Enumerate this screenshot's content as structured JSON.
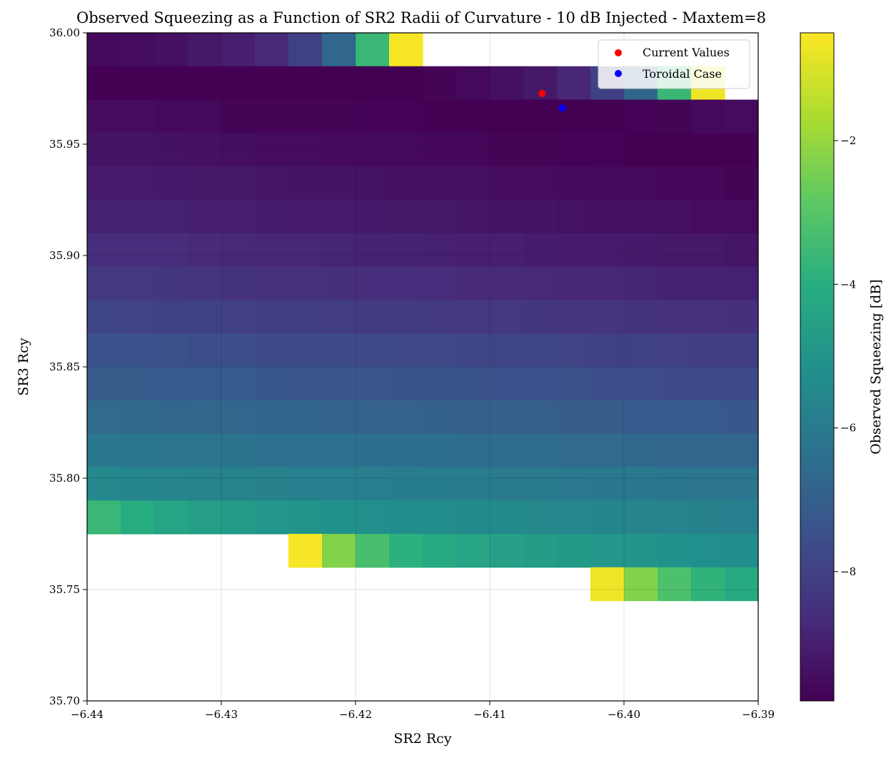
{
  "chart_data": {
    "type": "heatmap",
    "title": "Observed Squeezing as a Function of SR2 Radii of Curvature - 10 dB Injected - Maxtem=8",
    "xlabel": "SR2 Rcy",
    "ylabel": "SR3 Rcy",
    "colorbar_label": "Observed Squeezing [dB]",
    "colormap": "viridis",
    "xlim": [
      -6.44,
      -6.39
    ],
    "ylim": [
      35.7,
      36.0
    ],
    "clim": [
      -9.8,
      -0.5
    ],
    "grid": true,
    "x_ticks": [
      -6.44,
      -6.43,
      -6.42,
      -6.41,
      -6.4,
      -6.39
    ],
    "x_tick_labels": [
      "−6.44",
      "−6.43",
      "−6.42",
      "−6.41",
      "−6.40",
      "−6.39"
    ],
    "y_ticks": [
      35.7,
      35.75,
      35.8,
      35.85,
      35.9,
      35.95,
      36.0
    ],
    "y_tick_labels": [
      "35.70",
      "35.75",
      "35.80",
      "35.85",
      "35.90",
      "35.95",
      "36.00"
    ],
    "colorbar_ticks": [
      -2,
      -4,
      -6,
      -8
    ],
    "colorbar_tick_labels": [
      "−2",
      "−4",
      "−6",
      "−8"
    ],
    "x_edges": [
      -6.44,
      -6.4375,
      -6.435,
      -6.4325,
      -6.43,
      -6.4275,
      -6.425,
      -6.4225,
      -6.42,
      -6.4175,
      -6.415,
      -6.4125,
      -6.41,
      -6.4075,
      -6.405,
      -6.4025,
      -6.4,
      -6.3975,
      -6.395,
      -6.3925,
      -6.39
    ],
    "rows": [
      {
        "y0": 35.985,
        "y1": 36.0,
        "values": [
          -9.6,
          -9.5,
          -9.4,
          -9.2,
          -9.0,
          -8.7,
          -8.0,
          -6.7,
          -3.6,
          -0.6,
          null,
          null,
          null,
          null,
          null,
          null,
          null,
          null,
          null,
          null
        ]
      },
      {
        "y0": 35.97,
        "y1": 35.985,
        "values": [
          -9.8,
          -9.8,
          -9.8,
          -9.8,
          -9.8,
          -9.8,
          -9.8,
          -9.8,
          -9.8,
          -9.8,
          -9.7,
          -9.6,
          -9.4,
          -9.2,
          -8.8,
          -8.0,
          -6.7,
          -3.6,
          -0.7,
          null
        ]
      },
      {
        "y0": 35.955,
        "y1": 35.97,
        "values": [
          -9.5,
          -9.5,
          -9.6,
          -9.6,
          -9.7,
          -9.7,
          -9.7,
          -9.7,
          -9.75,
          -9.75,
          -9.8,
          -9.8,
          -9.8,
          -9.8,
          -9.8,
          -9.8,
          -9.75,
          -9.7,
          -9.6,
          -9.5
        ]
      },
      {
        "y0": 35.94,
        "y1": 35.955,
        "values": [
          -9.3,
          -9.3,
          -9.35,
          -9.4,
          -9.45,
          -9.5,
          -9.5,
          -9.55,
          -9.6,
          -9.6,
          -9.65,
          -9.65,
          -9.7,
          -9.7,
          -9.75,
          -9.75,
          -9.8,
          -9.8,
          -9.8,
          -9.8
        ]
      },
      {
        "y0": 35.925,
        "y1": 35.94,
        "values": [
          -9.1,
          -9.1,
          -9.15,
          -9.2,
          -9.2,
          -9.25,
          -9.3,
          -9.3,
          -9.35,
          -9.4,
          -9.4,
          -9.45,
          -9.5,
          -9.5,
          -9.55,
          -9.6,
          -9.6,
          -9.65,
          -9.65,
          -9.7
        ]
      },
      {
        "y0": 35.91,
        "y1": 35.925,
        "values": [
          -8.9,
          -8.9,
          -8.95,
          -9.0,
          -9.0,
          -9.05,
          -9.1,
          -9.1,
          -9.15,
          -9.2,
          -9.2,
          -9.25,
          -9.3,
          -9.3,
          -9.35,
          -9.4,
          -9.4,
          -9.45,
          -9.5,
          -9.5
        ]
      },
      {
        "y0": 35.895,
        "y1": 35.91,
        "values": [
          -8.6,
          -8.6,
          -8.65,
          -8.7,
          -8.75,
          -8.8,
          -8.8,
          -8.85,
          -8.9,
          -8.9,
          -8.95,
          -9.0,
          -9.0,
          -9.05,
          -9.1,
          -9.1,
          -9.15,
          -9.2,
          -9.2,
          -9.25
        ]
      },
      {
        "y0": 35.88,
        "y1": 35.895,
        "values": [
          -8.3,
          -8.3,
          -8.35,
          -8.4,
          -8.45,
          -8.5,
          -8.5,
          -8.55,
          -8.6,
          -8.6,
          -8.65,
          -8.7,
          -8.7,
          -8.75,
          -8.8,
          -8.8,
          -8.85,
          -8.9,
          -8.9,
          -8.95
        ]
      },
      {
        "y0": 35.865,
        "y1": 35.88,
        "values": [
          -7.9,
          -7.95,
          -8.0,
          -8.0,
          -8.05,
          -8.1,
          -8.1,
          -8.15,
          -8.2,
          -8.2,
          -8.25,
          -8.3,
          -8.3,
          -8.35,
          -8.4,
          -8.4,
          -8.45,
          -8.5,
          -8.5,
          -8.55
        ]
      },
      {
        "y0": 35.85,
        "y1": 35.865,
        "values": [
          -7.5,
          -7.5,
          -7.55,
          -7.6,
          -7.6,
          -7.65,
          -7.7,
          -7.7,
          -7.75,
          -7.8,
          -7.8,
          -7.85,
          -7.9,
          -7.9,
          -7.95,
          -8.0,
          -8.0,
          -8.05,
          -8.1,
          -8.1
        ]
      },
      {
        "y0": 35.835,
        "y1": 35.85,
        "values": [
          -7.1,
          -7.1,
          -7.15,
          -7.2,
          -7.2,
          -7.25,
          -7.3,
          -7.3,
          -7.35,
          -7.4,
          -7.4,
          -7.45,
          -7.5,
          -7.5,
          -7.55,
          -7.6,
          -7.6,
          -7.65,
          -7.7,
          -7.7
        ]
      },
      {
        "y0": 35.82,
        "y1": 35.835,
        "values": [
          -6.6,
          -6.65,
          -6.7,
          -6.7,
          -6.75,
          -6.8,
          -6.8,
          -6.85,
          -6.9,
          -6.9,
          -6.95,
          -7.0,
          -7.0,
          -7.05,
          -7.1,
          -7.1,
          -7.15,
          -7.2,
          -7.2,
          -7.25
        ]
      },
      {
        "y0": 35.805,
        "y1": 35.82,
        "values": [
          -6.1,
          -6.15,
          -6.2,
          -6.2,
          -6.25,
          -6.3,
          -6.3,
          -6.35,
          -6.4,
          -6.4,
          -6.45,
          -6.5,
          -6.5,
          -6.55,
          -6.6,
          -6.6,
          -6.65,
          -6.7,
          -6.7,
          -6.75
        ]
      },
      {
        "y0": 35.79,
        "y1": 35.805,
        "values": [
          -5.5,
          -5.6,
          -5.65,
          -5.7,
          -5.7,
          -5.75,
          -5.8,
          -5.8,
          -5.85,
          -5.9,
          -5.9,
          -5.95,
          -6.0,
          -6.0,
          -6.05,
          -6.1,
          -6.1,
          -6.15,
          -6.2,
          -6.2
        ]
      },
      {
        "y0": 35.775,
        "y1": 35.79,
        "values": [
          -3.6,
          -4.1,
          -4.4,
          -4.6,
          -4.75,
          -4.9,
          -5.0,
          -5.1,
          -5.2,
          -5.25,
          -5.3,
          -5.4,
          -5.45,
          -5.5,
          -5.55,
          -5.6,
          -5.65,
          -5.7,
          -5.75,
          -5.8
        ]
      },
      {
        "y0": 35.76,
        "y1": 35.775,
        "values": [
          null,
          null,
          null,
          null,
          null,
          null,
          -0.6,
          -2.3,
          -3.3,
          -3.9,
          -4.2,
          -4.4,
          -4.55,
          -4.7,
          -4.8,
          -4.9,
          -5.0,
          -5.1,
          -5.2,
          -5.25
        ]
      },
      {
        "y0": 35.745,
        "y1": 35.76,
        "values": [
          null,
          null,
          null,
          null,
          null,
          null,
          null,
          null,
          null,
          null,
          null,
          null,
          null,
          null,
          null,
          -0.7,
          -2.3,
          -3.2,
          -3.8,
          -4.2
        ]
      }
    ],
    "points": [
      {
        "name": "Current Values",
        "x": -6.4061,
        "y": 35.9728,
        "color": "#ff0000"
      },
      {
        "name": "Toroidal Case",
        "x": -6.4046,
        "y": 35.9662,
        "color": "#0000ff"
      }
    ],
    "legend_position": "upper-right"
  }
}
